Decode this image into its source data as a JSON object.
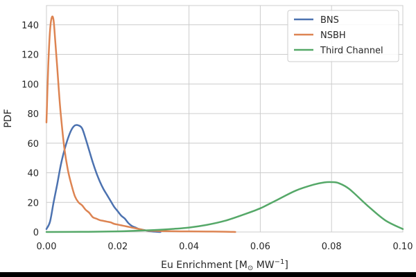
{
  "chart_data": {
    "type": "line",
    "xlabel": "Eu Enrichment [M",
    "xlabel_sub": "⊙",
    "xlabel_mid": " MW",
    "xlabel_sup": "−1",
    "xlabel_end": "]",
    "ylabel": "PDF",
    "xlim": [
      0.0,
      0.1
    ],
    "ylim": [
      0,
      153
    ],
    "xticks": [
      0.0,
      0.02,
      0.04,
      0.06,
      0.08,
      0.1
    ],
    "xtick_labels": [
      "0.00",
      "0.02",
      "0.04",
      "0.06",
      "0.08",
      "0.10"
    ],
    "yticks": [
      0,
      20,
      40,
      60,
      80,
      100,
      120,
      140
    ],
    "ytick_labels": [
      "0",
      "20",
      "40",
      "60",
      "80",
      "100",
      "120",
      "140"
    ],
    "grid": true,
    "legend_position": "top-right",
    "series": [
      {
        "name": "BNS",
        "color": "#4c72b0",
        "x": [
          0.0,
          0.001,
          0.002,
          0.003,
          0.004,
          0.005,
          0.006,
          0.007,
          0.008,
          0.009,
          0.01,
          0.011,
          0.012,
          0.013,
          0.014,
          0.015,
          0.016,
          0.017,
          0.018,
          0.019,
          0.02,
          0.021,
          0.022,
          0.023,
          0.024,
          0.025,
          0.026,
          0.027,
          0.028,
          0.029,
          0.03,
          0.031,
          0.032
        ],
        "y": [
          2,
          7,
          20,
          32,
          45,
          55,
          63,
          69,
          72,
          72,
          70,
          63,
          55,
          47,
          40,
          34,
          29,
          25,
          21,
          17,
          14,
          11,
          9,
          6,
          4,
          3,
          2,
          1.5,
          1,
          0.5,
          0.3,
          0.1,
          0
        ]
      },
      {
        "name": "NSBH",
        "color": "#dd8452",
        "x": [
          0.0,
          0.0005,
          0.001,
          0.0015,
          0.002,
          0.0025,
          0.003,
          0.0035,
          0.004,
          0.005,
          0.006,
          0.007,
          0.008,
          0.009,
          0.01,
          0.011,
          0.012,
          0.013,
          0.014,
          0.015,
          0.016,
          0.017,
          0.018,
          0.019,
          0.02,
          0.021,
          0.022,
          0.023,
          0.024,
          0.025,
          0.026,
          0.027,
          0.028,
          0.03,
          0.035,
          0.04,
          0.045,
          0.05,
          0.053
        ],
        "y": [
          74,
          112,
          136,
          145,
          143,
          128,
          112,
          95,
          80,
          57,
          42,
          32,
          24,
          20,
          18,
          15,
          13,
          10,
          9,
          8,
          7.5,
          7,
          6.5,
          5.5,
          5,
          4.5,
          4,
          3.5,
          3,
          2.5,
          2,
          1.5,
          1,
          0.8,
          0.5,
          0.4,
          0.3,
          0.2,
          0
        ]
      },
      {
        "name": "Third Channel",
        "color": "#55a868",
        "x": [
          0.0,
          0.01,
          0.02,
          0.025,
          0.03,
          0.035,
          0.04,
          0.045,
          0.05,
          0.055,
          0.06,
          0.065,
          0.07,
          0.075,
          0.078,
          0.08,
          0.082,
          0.085,
          0.09,
          0.095,
          0.1
        ],
        "y": [
          0,
          0.1,
          0.4,
          0.8,
          1.3,
          2,
          3,
          4.8,
          7.5,
          11.5,
          16,
          22,
          28,
          32,
          33.5,
          33.7,
          33,
          29,
          18,
          8,
          2
        ]
      }
    ]
  }
}
